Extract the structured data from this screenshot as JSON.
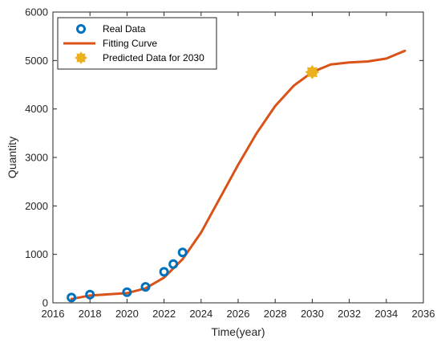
{
  "chart_data": {
    "type": "line",
    "xlabel": "Time(year)",
    "ylabel": "Quantity",
    "xlim": [
      2016,
      2036
    ],
    "ylim": [
      0,
      6000
    ],
    "x_ticks": [
      2016,
      2018,
      2020,
      2022,
      2024,
      2026,
      2028,
      2030,
      2032,
      2034,
      2036
    ],
    "y_ticks": [
      0,
      1000,
      2000,
      3000,
      4000,
      5000,
      6000
    ],
    "grid": false,
    "legend_position": "top-left",
    "series": [
      {
        "name": "Real Data",
        "kind": "scatter",
        "color": "#0072BD",
        "x": [
          2017,
          2018,
          2020,
          2021,
          2022,
          2022.5,
          2023
        ],
        "y": [
          110,
          170,
          220,
          330,
          640,
          800,
          1040
        ]
      },
      {
        "name": "Fitting Curve",
        "kind": "line",
        "color": "#D95319",
        "x": [
          2017,
          2018,
          2019,
          2020,
          2021,
          2022,
          2023,
          2024,
          2025,
          2026,
          2027,
          2028,
          2029,
          2030,
          2031,
          2032,
          2033,
          2034,
          2035
        ],
        "y": [
          80,
          150,
          175,
          200,
          300,
          520,
          900,
          1450,
          2150,
          2850,
          3500,
          4060,
          4480,
          4760,
          4920,
          4960,
          4980,
          5040,
          5200
        ]
      },
      {
        "name": "Predicted Data for 2030",
        "kind": "scatter",
        "color": "#EDB120",
        "x": [
          2030
        ],
        "y": [
          4760
        ]
      }
    ]
  }
}
